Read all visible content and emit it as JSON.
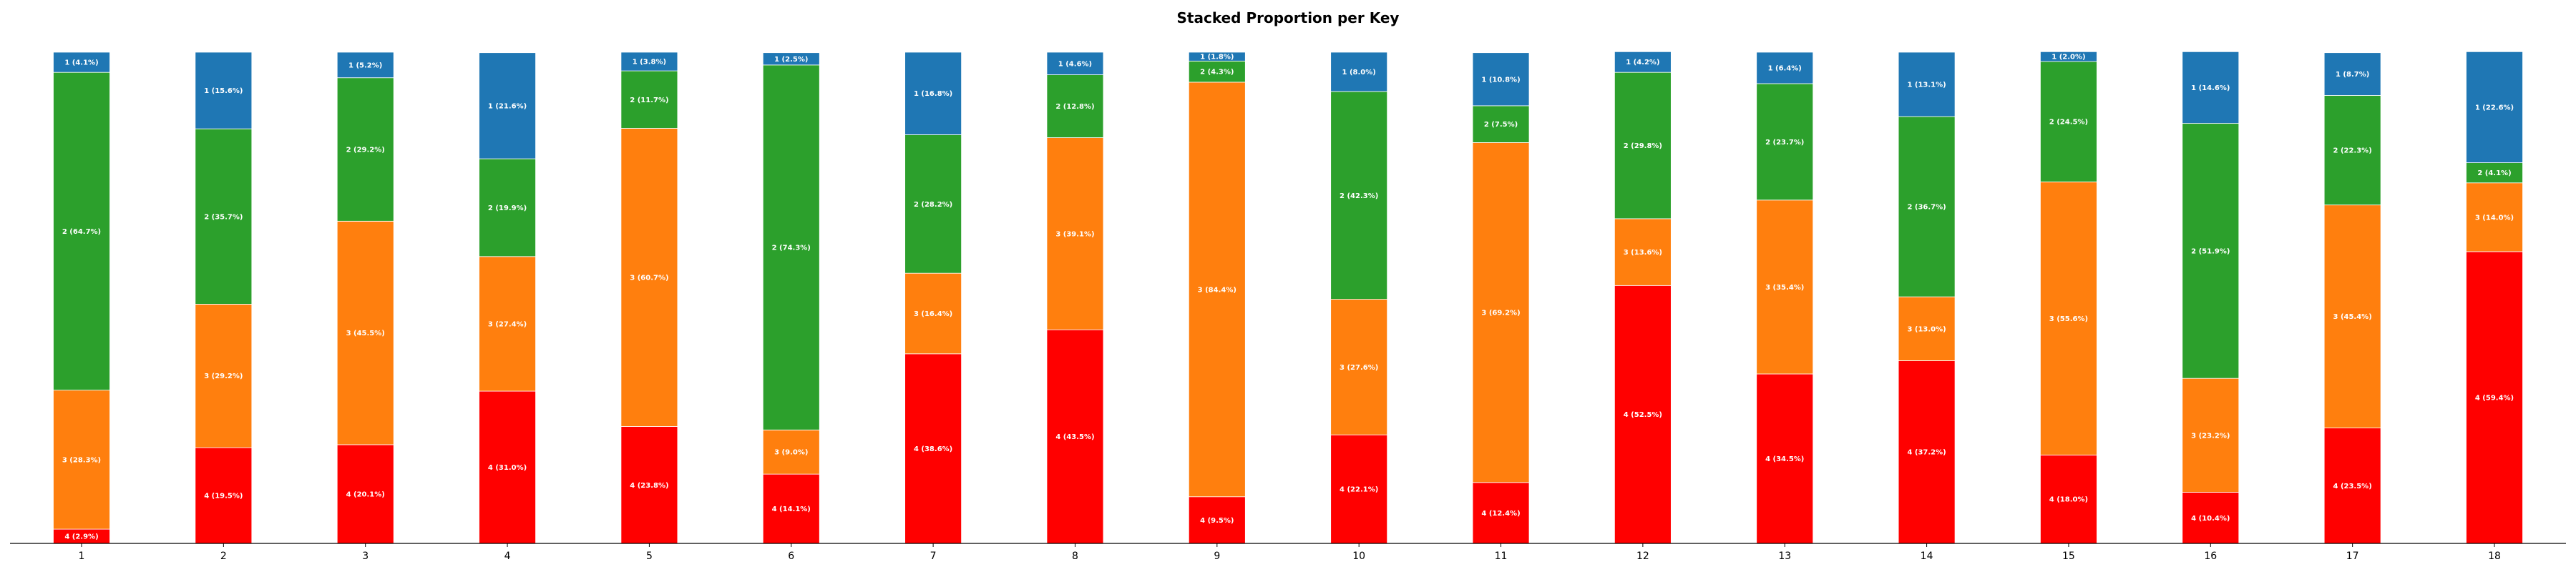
{
  "chart_data": {
    "type": "bar",
    "stacked": true,
    "title": "Stacked Proportion per Key",
    "xlabel": "",
    "ylabel": "",
    "ylim": [
      0,
      100
    ],
    "grid": false,
    "legend": "none",
    "categories": [
      "1",
      "2",
      "3",
      "4",
      "5",
      "6",
      "7",
      "8",
      "9",
      "10",
      "11",
      "12",
      "13",
      "14",
      "15",
      "16",
      "17",
      "18"
    ],
    "series": [
      {
        "name": "4",
        "color": "#ff0000",
        "values": [
          2.9,
          19.5,
          20.1,
          31.0,
          23.8,
          14.1,
          38.6,
          43.5,
          9.5,
          22.1,
          12.4,
          52.5,
          34.5,
          37.2,
          18.0,
          10.4,
          23.5,
          59.4
        ],
        "labels": [
          "4 (2.9%)",
          "4 (19.5%)",
          "4 (20.1%)",
          "4 (31.0%)",
          "4 (23.8%)",
          "4 (14.1%)",
          "4 (38.6%)",
          "4 (43.5%)",
          "4 (9.5%)",
          "4 (22.1%)",
          "4 (12.4%)",
          "4 (52.5%)",
          "4 (34.5%)",
          "4 (37.2%)",
          "4 (18.0%)",
          "4 (10.4%)",
          "4 (23.5%)",
          "4 (59.4%)"
        ]
      },
      {
        "name": "3",
        "color": "#ff7f0e",
        "values": [
          28.3,
          29.2,
          45.5,
          27.4,
          60.7,
          9.0,
          16.4,
          39.1,
          84.4,
          27.6,
          69.2,
          13.6,
          35.4,
          13.0,
          55.6,
          23.2,
          45.4,
          14.0
        ],
        "labels": [
          "3 (28.3%)",
          "3 (29.2%)",
          "3 (45.5%)",
          "3 (27.4%)",
          "3 (60.7%)",
          "3 (9.0%)",
          "3 (16.4%)",
          "3 (39.1%)",
          "3 (84.4%)",
          "3 (27.6%)",
          "3 (69.2%)",
          "3 (13.6%)",
          "3 (35.4%)",
          "3 (13.0%)",
          "3 (55.6%)",
          "3 (23.2%)",
          "3 (45.4%)",
          "3 (14.0%)"
        ]
      },
      {
        "name": "2",
        "color": "#2ca02c",
        "values": [
          64.7,
          35.7,
          29.2,
          19.9,
          11.7,
          74.3,
          28.2,
          12.8,
          4.3,
          42.3,
          7.5,
          29.8,
          23.7,
          36.7,
          24.5,
          51.9,
          22.3,
          4.1
        ],
        "labels": [
          "2 (64.7%)",
          "2 (35.7%)",
          "2 (29.2%)",
          "2 (19.9%)",
          "2 (11.7%)",
          "2 (74.3%)",
          "2 (28.2%)",
          "2 (12.8%)",
          "2 (4.3%)",
          "2 (42.3%)",
          "2 (7.5%)",
          "2 (29.8%)",
          "2 (23.7%)",
          "2 (36.7%)",
          "2 (24.5%)",
          "2 (51.9%)",
          "2 (22.3%)",
          "2 (4.1%)"
        ]
      },
      {
        "name": "1",
        "color": "#1f77b4",
        "values": [
          4.1,
          15.6,
          5.2,
          21.6,
          3.8,
          2.5,
          16.8,
          4.6,
          1.8,
          8.0,
          10.8,
          4.2,
          6.4,
          13.1,
          2.0,
          14.6,
          8.7,
          22.6
        ],
        "labels": [
          "1 (4.1%)",
          "1 (15.6%)",
          "1 (5.2%)",
          "1 (21.6%)",
          "1 (3.8%)",
          "1 (2.5%)",
          "1 (16.8%)",
          "1 (4.6%)",
          "1 (1.8%)",
          "1 (8.0%)",
          "1 (10.8%)",
          "1 (4.2%)",
          "1 (6.4%)",
          "1 (13.1%)",
          "1 (2.0%)",
          "1 (14.6%)",
          "1 (8.7%)",
          "1 (22.6%)"
        ]
      }
    ]
  }
}
